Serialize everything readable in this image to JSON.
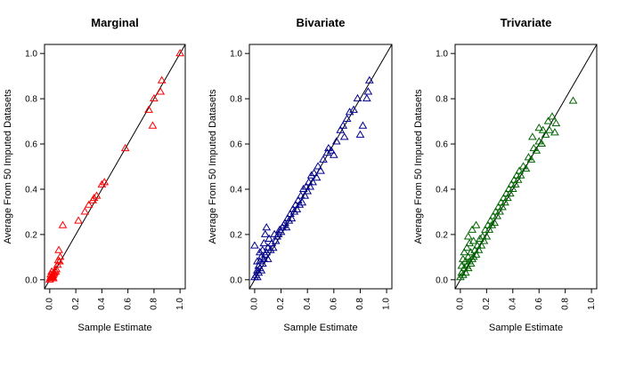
{
  "chart_data": [
    {
      "type": "scatter",
      "title": "Marginal",
      "xlabel": "Sample Estimate",
      "ylabel": "Average From 50 Imputed Datasets",
      "xlim": [
        0,
        1
      ],
      "ylim": [
        0,
        1
      ],
      "xticks": [
        "0.0",
        "0.2",
        "0.4",
        "0.6",
        "0.8",
        "1.0"
      ],
      "yticks": [
        "0.0",
        "0.2",
        "0.4",
        "0.6",
        "0.8",
        "1.0"
      ],
      "marker": "open-triangle",
      "color": "#ff0000",
      "reference_line": "y = x",
      "points": [
        [
          0,
          0
        ],
        [
          0.005,
          0.008
        ],
        [
          0.01,
          0.005
        ],
        [
          0.012,
          0.015
        ],
        [
          0.018,
          0.012
        ],
        [
          0.02,
          0.02
        ],
        [
          0.025,
          0.018
        ],
        [
          0.03,
          0.025
        ],
        [
          0.035,
          0.03
        ],
        [
          0.008,
          0.022
        ],
        [
          0.015,
          0.035
        ],
        [
          0.022,
          0.01
        ],
        [
          0.04,
          0.04
        ],
        [
          0.045,
          0.035
        ],
        [
          0.028,
          0.005
        ],
        [
          0.05,
          0.045
        ],
        [
          0.06,
          0.065
        ],
        [
          0.065,
          0.085
        ],
        [
          0.075,
          0.08
        ],
        [
          0.08,
          0.1
        ],
        [
          0.07,
          0.13
        ],
        [
          0.1,
          0.24
        ],
        [
          0.22,
          0.26
        ],
        [
          0.27,
          0.3
        ],
        [
          0.3,
          0.33
        ],
        [
          0.33,
          0.35
        ],
        [
          0.34,
          0.36
        ],
        [
          0.36,
          0.37
        ],
        [
          0.4,
          0.42
        ],
        [
          0.42,
          0.43
        ],
        [
          0.58,
          0.58
        ],
        [
          0.76,
          0.75
        ],
        [
          0.8,
          0.8
        ],
        [
          0.79,
          0.68
        ],
        [
          0.85,
          0.83
        ],
        [
          0.86,
          0.88
        ],
        [
          1.0,
          1.0
        ]
      ]
    },
    {
      "type": "scatter",
      "title": "Bivariate",
      "xlabel": "Sample Estimate",
      "ylabel": "Average From 50 Imputed Datasets",
      "xlim": [
        0,
        1
      ],
      "ylim": [
        0,
        1
      ],
      "xticks": [
        "0.0",
        "0.2",
        "0.4",
        "0.6",
        "0.8",
        "1.0"
      ],
      "yticks": [
        "0.0",
        "0.2",
        "0.4",
        "0.6",
        "0.8",
        "1.0"
      ],
      "marker": "open-triangle",
      "color": "#00008b",
      "reference_line": "y = x",
      "points": [
        [
          0,
          0.01
        ],
        [
          0.01,
          0.02
        ],
        [
          0.02,
          0.01
        ],
        [
          0.02,
          0.04
        ],
        [
          0.03,
          0.03
        ],
        [
          0.03,
          0.06
        ],
        [
          0.04,
          0.05
        ],
        [
          0.04,
          0.08
        ],
        [
          0.05,
          0.04
        ],
        [
          0.05,
          0.1
        ],
        [
          0.06,
          0.07
        ],
        [
          0.06,
          0.13
        ],
        [
          0.07,
          0.09
        ],
        [
          0.07,
          0.16
        ],
        [
          0.08,
          0.11
        ],
        [
          0.08,
          0.2
        ],
        [
          0.09,
          0.12
        ],
        [
          0.09,
          0.23
        ],
        [
          0.1,
          0.14
        ],
        [
          0.1,
          0.09
        ],
        [
          0.11,
          0.18
        ],
        [
          0.12,
          0.13
        ],
        [
          0.13,
          0.16
        ],
        [
          0.14,
          0.14
        ],
        [
          0.15,
          0.2
        ],
        [
          0.16,
          0.17
        ],
        [
          0.17,
          0.19
        ],
        [
          0.18,
          0.2
        ],
        [
          0.19,
          0.22
        ],
        [
          0.2,
          0.21
        ],
        [
          0.21,
          0.23
        ],
        [
          0.22,
          0.24
        ],
        [
          0.23,
          0.25
        ],
        [
          0.24,
          0.23
        ],
        [
          0.25,
          0.27
        ],
        [
          0.26,
          0.26
        ],
        [
          0.27,
          0.29
        ],
        [
          0.28,
          0.27
        ],
        [
          0.29,
          0.31
        ],
        [
          0.3,
          0.3
        ],
        [
          0.31,
          0.33
        ],
        [
          0.32,
          0.31
        ],
        [
          0.33,
          0.35
        ],
        [
          0.34,
          0.33
        ],
        [
          0.35,
          0.37
        ],
        [
          0.36,
          0.34
        ],
        [
          0.37,
          0.4
        ],
        [
          0.38,
          0.37
        ],
        [
          0.39,
          0.41
        ],
        [
          0.4,
          0.39
        ],
        [
          0.41,
          0.43
        ],
        [
          0.42,
          0.41
        ],
        [
          0.43,
          0.46
        ],
        [
          0.44,
          0.43
        ],
        [
          0.45,
          0.47
        ],
        [
          0.47,
          0.45
        ],
        [
          0.48,
          0.5
        ],
        [
          0.5,
          0.48
        ],
        [
          0.52,
          0.53
        ],
        [
          0.55,
          0.56
        ],
        [
          0.56,
          0.58
        ],
        [
          0.58,
          0.57
        ],
        [
          0.6,
          0.55
        ],
        [
          0.62,
          0.61
        ],
        [
          0.65,
          0.66
        ],
        [
          0.67,
          0.68
        ],
        [
          0.68,
          0.63
        ],
        [
          0.7,
          0.71
        ],
        [
          0.72,
          0.74
        ],
        [
          0.75,
          0.75
        ],
        [
          0.78,
          0.8
        ],
        [
          0.8,
          0.64
        ],
        [
          0.82,
          0.68
        ],
        [
          0.85,
          0.8
        ],
        [
          0.86,
          0.83
        ],
        [
          0.87,
          0.88
        ],
        [
          0,
          0.15
        ],
        [
          0.02,
          0.08
        ],
        [
          0.04,
          0.12
        ]
      ]
    },
    {
      "type": "scatter",
      "title": "Trivariate",
      "xlabel": "Sample Estimate",
      "ylabel": "Average From 50 Imputed Datasets",
      "xlim": [
        0,
        1
      ],
      "ylim": [
        0,
        1
      ],
      "xticks": [
        "0.0",
        "0.2",
        "0.4",
        "0.6",
        "0.8",
        "1.0"
      ],
      "yticks": [
        "0.0",
        "0.2",
        "0.4",
        "0.6",
        "0.8",
        "1.0"
      ],
      "marker": "open-triangle",
      "color": "#006400",
      "reference_line": "y = x",
      "points": [
        [
          0,
          0.01
        ],
        [
          0.01,
          0.03
        ],
        [
          0.01,
          0.06
        ],
        [
          0.02,
          0.02
        ],
        [
          0.02,
          0.09
        ],
        [
          0.03,
          0.05
        ],
        [
          0.03,
          0.12
        ],
        [
          0.04,
          0.03
        ],
        [
          0.04,
          0.08
        ],
        [
          0.05,
          0.06
        ],
        [
          0.05,
          0.14
        ],
        [
          0.06,
          0.05
        ],
        [
          0.06,
          0.1
        ],
        [
          0.07,
          0.08
        ],
        [
          0.07,
          0.16
        ],
        [
          0.08,
          0.07
        ],
        [
          0.08,
          0.12
        ],
        [
          0.09,
          0.09
        ],
        [
          0.1,
          0.1
        ],
        [
          0.1,
          0.17
        ],
        [
          0.11,
          0.13
        ],
        [
          0.12,
          0.11
        ],
        [
          0.13,
          0.15
        ],
        [
          0.14,
          0.13
        ],
        [
          0.15,
          0.18
        ],
        [
          0.16,
          0.15
        ],
        [
          0.17,
          0.19
        ],
        [
          0.18,
          0.17
        ],
        [
          0.19,
          0.22
        ],
        [
          0.2,
          0.19
        ],
        [
          0.21,
          0.24
        ],
        [
          0.22,
          0.22
        ],
        [
          0.23,
          0.26
        ],
        [
          0.24,
          0.24
        ],
        [
          0.25,
          0.28
        ],
        [
          0.26,
          0.25
        ],
        [
          0.27,
          0.3
        ],
        [
          0.28,
          0.28
        ],
        [
          0.29,
          0.32
        ],
        [
          0.3,
          0.3
        ],
        [
          0.31,
          0.34
        ],
        [
          0.32,
          0.32
        ],
        [
          0.33,
          0.36
        ],
        [
          0.34,
          0.34
        ],
        [
          0.35,
          0.38
        ],
        [
          0.36,
          0.36
        ],
        [
          0.37,
          0.4
        ],
        [
          0.38,
          0.38
        ],
        [
          0.39,
          0.42
        ],
        [
          0.4,
          0.4
        ],
        [
          0.41,
          0.44
        ],
        [
          0.42,
          0.42
        ],
        [
          0.43,
          0.46
        ],
        [
          0.44,
          0.44
        ],
        [
          0.45,
          0.48
        ],
        [
          0.46,
          0.46
        ],
        [
          0.48,
          0.5
        ],
        [
          0.5,
          0.49
        ],
        [
          0.52,
          0.54
        ],
        [
          0.54,
          0.53
        ],
        [
          0.56,
          0.58
        ],
        [
          0.58,
          0.57
        ],
        [
          0.6,
          0.61
        ],
        [
          0.62,
          0.6
        ],
        [
          0.63,
          0.66
        ],
        [
          0.65,
          0.64
        ],
        [
          0.67,
          0.7
        ],
        [
          0.68,
          0.66
        ],
        [
          0.7,
          0.72
        ],
        [
          0.72,
          0.65
        ],
        [
          0.73,
          0.69
        ],
        [
          0.06,
          0.19
        ],
        [
          0.09,
          0.22
        ],
        [
          0.12,
          0.24
        ],
        [
          0.55,
          0.63
        ],
        [
          0.6,
          0.67
        ],
        [
          0.86,
          0.79
        ]
      ]
    }
  ]
}
